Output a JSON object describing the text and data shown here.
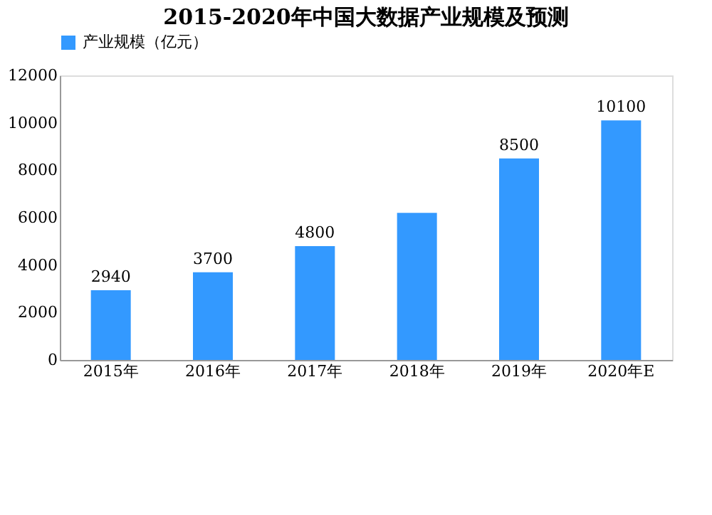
{
  "chart_data": {
    "type": "bar",
    "title": "2015-2020年中国大数据产业规模及预测",
    "categories": [
      "2015年",
      "2016年",
      "2017年",
      "2018年",
      "2019年",
      "2020年E"
    ],
    "series": [
      {
        "name": "产业规模（亿元）",
        "color": "#3399ff",
        "values": [
          2940,
          3700,
          4800,
          6200,
          8500,
          10100
        ]
      }
    ],
    "value_labels": [
      "2940",
      "3700",
      "4800",
      null,
      "8500",
      "10100"
    ],
    "ylim": [
      0,
      12000
    ],
    "yticks": [
      0,
      2000,
      4000,
      6000,
      8000,
      10000,
      12000
    ],
    "grid": false,
    "legend": "top"
  }
}
